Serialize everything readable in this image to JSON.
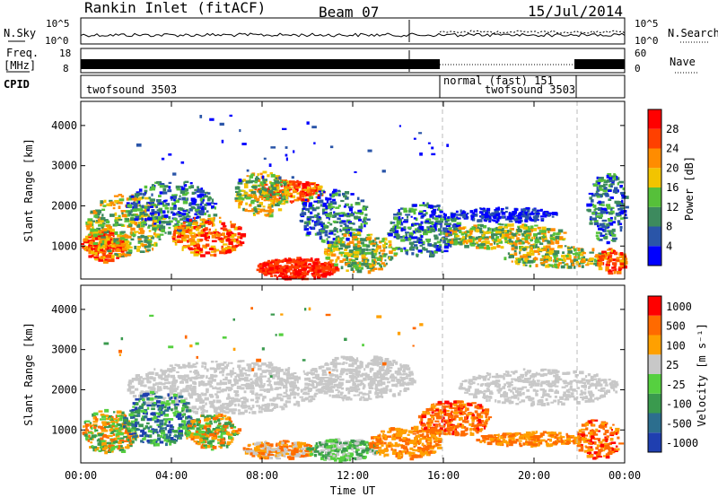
{
  "header": {
    "station": "Rankin Inlet (fitACF)",
    "beam": "Beam 07",
    "date": "15/Jul/2014"
  },
  "strips": {
    "nsky_label": "N.Sky",
    "nsky_ticks": [
      "10^5",
      "10^0"
    ],
    "nsearch_label": "N.Search",
    "freq_label": "Freq.",
    "freq_unit": "[MHz]",
    "freq_ticks": [
      "18",
      "8"
    ],
    "nave_label": "Nave",
    "nave_ticks": [
      "60",
      "0"
    ],
    "cpid_label": "CPID",
    "cpid_segments": [
      "twofsound 3503",
      "normal (fast) 151",
      "twofsound 3503"
    ]
  },
  "colors": {
    "power_scale": [
      "#0000ff",
      "#2a55a8",
      "#3d8a5e",
      "#56c03a",
      "#f2c400",
      "#ff8c00",
      "#ff4000",
      "#ff0000"
    ],
    "velocity_scale": [
      "#1f3fb0",
      "#2c6e8e",
      "#3a9a4e",
      "#56d040",
      "#c8c8c8",
      "#ffa000",
      "#ff6a00",
      "#ff0000"
    ],
    "white_gap": "#ffffff",
    "ground_scatter": "#b4b4b4"
  },
  "chart_data": [
    {
      "type": "heatmap",
      "panel": "power",
      "ylabel": "Slant Range [km]",
      "ylim": [
        180,
        4600
      ],
      "yticks": [
        "1000",
        "2000",
        "3000",
        "4000"
      ],
      "xticks": [
        "00:00",
        "04:00",
        "08:00",
        "12:00",
        "16:00",
        "20:00",
        "00:00"
      ],
      "xlim_hours": [
        0,
        24
      ],
      "colorbar_label": "Power [dB]",
      "colorbar_ticks": [
        "4",
        "8",
        "12",
        "16",
        "20",
        "24",
        "28"
      ],
      "cbar_range": [
        0,
        32
      ]
    },
    {
      "type": "heatmap",
      "panel": "velocity",
      "ylabel": "Slant Range [km]",
      "ylim": [
        180,
        4600
      ],
      "yticks": [
        "1000",
        "2000",
        "3000",
        "4000"
      ],
      "xticks": [
        "00:00",
        "04:00",
        "08:00",
        "12:00",
        "16:00",
        "20:00",
        "00:00"
      ],
      "xlim_hours": [
        0,
        24
      ],
      "xlabel": "Time UT",
      "colorbar_label": "Velocity [m s⁻¹]",
      "colorbar_ticks": [
        "1000",
        "500",
        "100",
        "25",
        "-25",
        "-100",
        "-500",
        "-1000"
      ]
    }
  ]
}
